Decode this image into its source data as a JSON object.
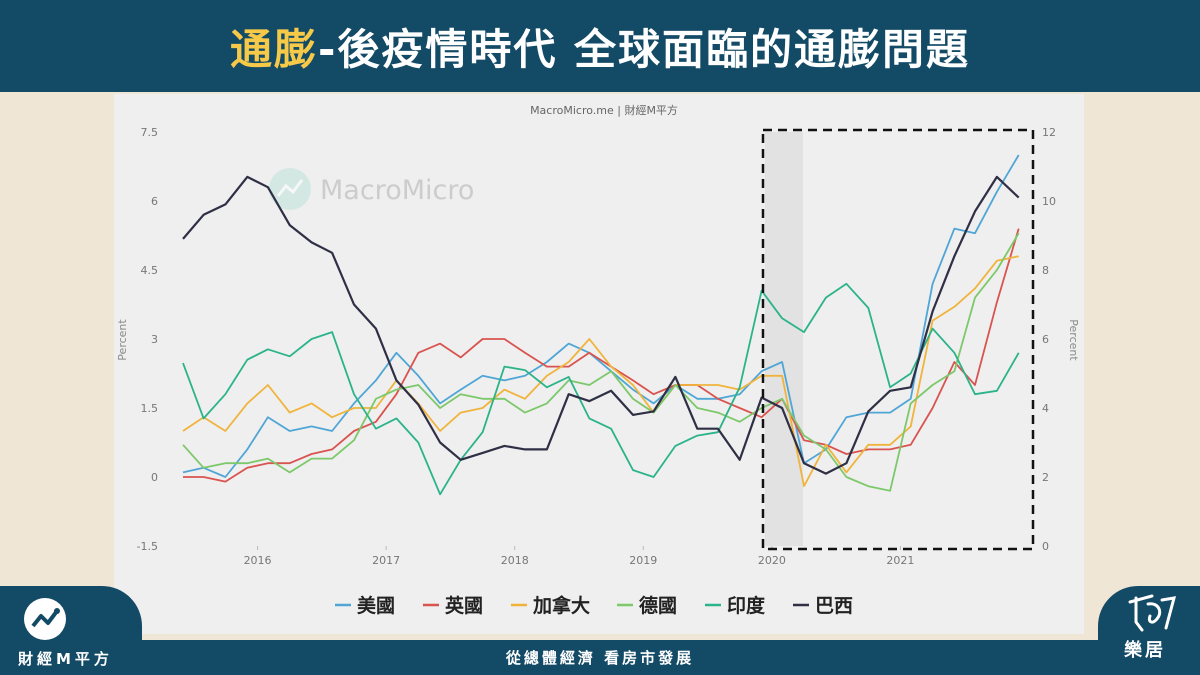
{
  "header": {
    "title_highlight": "通膨",
    "title_rest": "-後疫情時代 全球面臨的通膨問題"
  },
  "footer": {
    "left_brand": "財經M平方",
    "tagline": "從總體經濟 看房市發展",
    "right_brand": "樂居"
  },
  "colors": {
    "header_bg": "#134a66",
    "highlight": "#f7c948",
    "background": "#efe6d6"
  },
  "icons": {
    "left_logo": "macromicro-chart-icon",
    "right_logo": "leju-logo-icon",
    "watermark": "macromicro-chart-icon"
  },
  "chart_data": {
    "type": "line",
    "source_label": "MacroMicro.me | 財經M平方",
    "watermark": "MacroMicro",
    "ylabel_left": "Percent",
    "ylabel_right": "Percent",
    "ylim_left": [
      -1.5,
      7.5
    ],
    "ylim_right": [
      0,
      12
    ],
    "y_ticks_left": [
      "7.5",
      "6",
      "4.5",
      "3",
      "1.5",
      "0",
      "-1.5"
    ],
    "y_ticks_right": [
      "12",
      "10",
      "8",
      "6",
      "4",
      "2",
      "0"
    ],
    "x_tick_labels": [
      "2016",
      "2017",
      "2018",
      "2019",
      "2020",
      "2021"
    ],
    "x_ticks": [
      2016,
      2017,
      2018,
      2019,
      2020,
      2021
    ],
    "xlim": [
      2015.42,
      2022.0
    ],
    "grid": false,
    "legend_position": "bottom",
    "annotation": "dashed box highlighting 2020–2021",
    "series": [
      {
        "name": "美國",
        "axis": "left",
        "color": "#4fa6d6",
        "x": [
          2015.42,
          2015.58,
          2015.75,
          2015.92,
          2016.08,
          2016.25,
          2016.42,
          2016.58,
          2016.75,
          2016.92,
          2017.08,
          2017.25,
          2017.42,
          2017.58,
          2017.75,
          2017.92,
          2018.08,
          2018.25,
          2018.42,
          2018.58,
          2018.75,
          2018.92,
          2019.08,
          2019.25,
          2019.42,
          2019.58,
          2019.75,
          2019.92,
          2020.08,
          2020.25,
          2020.42,
          2020.58,
          2020.75,
          2020.92,
          2021.08,
          2021.25,
          2021.42,
          2021.58,
          2021.75,
          2021.92
        ],
        "y": [
          0.1,
          0.2,
          0.0,
          0.6,
          1.3,
          1.0,
          1.1,
          1.0,
          1.6,
          2.1,
          2.7,
          2.2,
          1.6,
          1.9,
          2.2,
          2.1,
          2.2,
          2.5,
          2.9,
          2.7,
          2.3,
          1.9,
          1.6,
          2.0,
          1.7,
          1.7,
          1.8,
          2.3,
          2.5,
          0.3,
          0.6,
          1.3,
          1.4,
          1.4,
          1.7,
          4.2,
          5.4,
          5.3,
          6.2,
          7.0
        ]
      },
      {
        "name": "英國",
        "axis": "left",
        "color": "#d9534f",
        "x": [
          2015.42,
          2015.58,
          2015.75,
          2015.92,
          2016.08,
          2016.25,
          2016.42,
          2016.58,
          2016.75,
          2016.92,
          2017.08,
          2017.25,
          2017.42,
          2017.58,
          2017.75,
          2017.92,
          2018.08,
          2018.25,
          2018.42,
          2018.58,
          2018.75,
          2018.92,
          2019.08,
          2019.25,
          2019.42,
          2019.58,
          2019.75,
          2019.92,
          2020.08,
          2020.25,
          2020.42,
          2020.58,
          2020.75,
          2020.92,
          2021.08,
          2021.25,
          2021.42,
          2021.58,
          2021.75,
          2021.92
        ],
        "y": [
          0.0,
          0.0,
          -0.1,
          0.2,
          0.3,
          0.3,
          0.5,
          0.6,
          1.0,
          1.2,
          1.8,
          2.7,
          2.9,
          2.6,
          3.0,
          3.0,
          2.7,
          2.4,
          2.4,
          2.7,
          2.4,
          2.1,
          1.8,
          2.0,
          2.0,
          1.7,
          1.5,
          1.3,
          1.7,
          0.8,
          0.7,
          0.5,
          0.6,
          0.6,
          0.7,
          1.5,
          2.5,
          2.0,
          3.8,
          5.4
        ]
      },
      {
        "name": "加拿大",
        "axis": "left",
        "color": "#f0b43c",
        "x": [
          2015.42,
          2015.58,
          2015.75,
          2015.92,
          2016.08,
          2016.25,
          2016.42,
          2016.58,
          2016.75,
          2016.92,
          2017.08,
          2017.25,
          2017.42,
          2017.58,
          2017.75,
          2017.92,
          2018.08,
          2018.25,
          2018.42,
          2018.58,
          2018.75,
          2018.92,
          2019.08,
          2019.25,
          2019.42,
          2019.58,
          2019.75,
          2019.92,
          2020.08,
          2020.25,
          2020.42,
          2020.58,
          2020.75,
          2020.92,
          2021.08,
          2021.25,
          2021.42,
          2021.58,
          2021.75,
          2021.92
        ],
        "y": [
          1.0,
          1.3,
          1.0,
          1.6,
          2.0,
          1.4,
          1.6,
          1.3,
          1.5,
          1.5,
          2.1,
          1.6,
          1.0,
          1.4,
          1.5,
          1.9,
          1.7,
          2.2,
          2.5,
          3.0,
          2.4,
          2.0,
          1.4,
          2.0,
          2.0,
          2.0,
          1.9,
          2.2,
          2.2,
          -0.2,
          0.7,
          0.1,
          0.7,
          0.7,
          1.1,
          3.4,
          3.7,
          4.1,
          4.7,
          4.8
        ]
      },
      {
        "name": "德國",
        "axis": "left",
        "color": "#7cc86a",
        "x": [
          2015.42,
          2015.58,
          2015.75,
          2015.92,
          2016.08,
          2016.25,
          2016.42,
          2016.58,
          2016.75,
          2016.92,
          2017.08,
          2017.25,
          2017.42,
          2017.58,
          2017.75,
          2017.92,
          2018.08,
          2018.25,
          2018.42,
          2018.58,
          2018.75,
          2018.92,
          2019.08,
          2019.25,
          2019.42,
          2019.58,
          2019.75,
          2019.92,
          2020.08,
          2020.25,
          2020.42,
          2020.58,
          2020.75,
          2020.92,
          2021.08,
          2021.25,
          2021.42,
          2021.58,
          2021.75,
          2021.92
        ],
        "y": [
          0.7,
          0.2,
          0.3,
          0.3,
          0.4,
          0.1,
          0.4,
          0.4,
          0.8,
          1.7,
          1.9,
          2.0,
          1.5,
          1.8,
          1.7,
          1.7,
          1.4,
          1.6,
          2.1,
          2.0,
          2.3,
          1.7,
          1.4,
          2.0,
          1.5,
          1.4,
          1.2,
          1.5,
          1.7,
          0.9,
          0.6,
          0.0,
          -0.2,
          -0.3,
          1.6,
          2.0,
          2.3,
          3.9,
          4.5,
          5.3
        ]
      },
      {
        "name": "印度",
        "axis": "right",
        "color": "#2bb38a",
        "x": [
          2015.42,
          2015.58,
          2015.75,
          2015.92,
          2016.08,
          2016.25,
          2016.42,
          2016.58,
          2016.75,
          2016.92,
          2017.08,
          2017.25,
          2017.42,
          2017.58,
          2017.75,
          2017.92,
          2018.08,
          2018.25,
          2018.42,
          2018.58,
          2018.75,
          2018.92,
          2019.08,
          2019.25,
          2019.42,
          2019.58,
          2019.75,
          2019.92,
          2020.08,
          2020.25,
          2020.42,
          2020.58,
          2020.75,
          2020.92,
          2021.08,
          2021.25,
          2021.42,
          2021.58,
          2021.75,
          2021.92
        ],
        "y": [
          5.3,
          3.7,
          4.4,
          5.4,
          5.7,
          5.5,
          6.0,
          6.2,
          4.4,
          3.4,
          3.7,
          3.0,
          1.5,
          2.5,
          3.3,
          5.2,
          5.1,
          4.6,
          4.9,
          3.7,
          3.4,
          2.2,
          2.0,
          2.9,
          3.2,
          3.3,
          4.6,
          7.4,
          6.6,
          6.2,
          7.2,
          7.6,
          6.9,
          4.6,
          5.0,
          6.3,
          5.6,
          4.4,
          4.5,
          5.6
        ]
      },
      {
        "name": "巴西",
        "axis": "right",
        "color": "#2f2f45",
        "x": [
          2015.42,
          2015.58,
          2015.75,
          2015.92,
          2016.08,
          2016.25,
          2016.42,
          2016.58,
          2016.75,
          2016.92,
          2017.08,
          2017.25,
          2017.42,
          2017.58,
          2017.75,
          2017.92,
          2018.08,
          2018.25,
          2018.42,
          2018.58,
          2018.75,
          2018.92,
          2019.08,
          2019.25,
          2019.42,
          2019.58,
          2019.75,
          2019.92,
          2020.08,
          2020.25,
          2020.42,
          2020.58,
          2020.75,
          2020.92,
          2021.08,
          2021.25,
          2021.42,
          2021.58,
          2021.75,
          2021.92
        ],
        "y": [
          8.9,
          9.6,
          9.9,
          10.7,
          10.4,
          9.3,
          8.8,
          8.5,
          7.0,
          6.3,
          4.8,
          4.1,
          3.0,
          2.5,
          2.7,
          2.9,
          2.8,
          2.8,
          4.4,
          4.2,
          4.5,
          3.8,
          3.9,
          4.9,
          3.4,
          3.4,
          2.5,
          4.3,
          4.0,
          2.4,
          2.1,
          2.4,
          3.9,
          4.5,
          4.6,
          6.8,
          8.4,
          9.7,
          10.7,
          10.1
        ]
      }
    ]
  }
}
